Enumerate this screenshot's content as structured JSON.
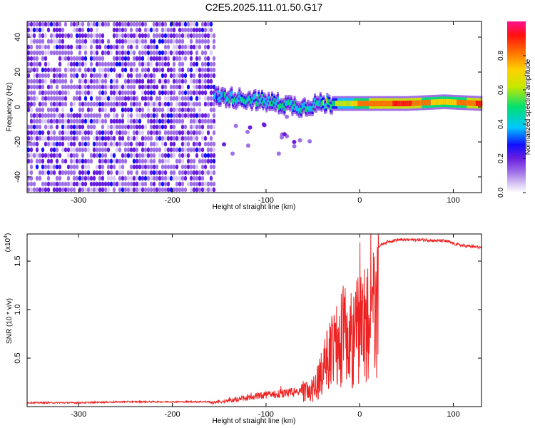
{
  "title": "C2E5.2025.111.01.50.G17",
  "chart_data": [
    {
      "type": "heatmap",
      "xlabel": "Height of straight line (km)",
      "ylabel": "Frequency (Hz)",
      "xlim": [
        -355,
        130
      ],
      "ylim": [
        -49,
        49
      ],
      "xticks": [
        -300,
        -200,
        -100,
        0,
        100
      ],
      "yticks": [
        -40,
        -20,
        0,
        20,
        40
      ],
      "noise_region": {
        "x_range": [
          -355,
          -155
        ],
        "y_range": [
          -49,
          49
        ],
        "note_amplitude": [
          0.1,
          0.3
        ]
      },
      "signal_track": [
        {
          "x": -155,
          "y": 6,
          "amp": 0.35
        },
        {
          "x": -140,
          "y": 5.5,
          "amp": 0.45
        },
        {
          "x": -120,
          "y": 4.5,
          "amp": 0.5
        },
        {
          "x": -100,
          "y": 3,
          "amp": 0.5
        },
        {
          "x": -80,
          "y": 1.5,
          "amp": 0.5
        },
        {
          "x": -60,
          "y": 0,
          "amp": 0.45
        },
        {
          "x": -45,
          "y": 2,
          "amp": 0.5
        },
        {
          "x": -30,
          "y": 2,
          "amp": 0.6
        },
        {
          "x": -10,
          "y": 2,
          "amp": 0.7
        },
        {
          "x": 0,
          "y": 2,
          "amp": 0.85
        },
        {
          "x": 50,
          "y": 2,
          "amp": 0.95
        },
        {
          "x": 90,
          "y": 3,
          "amp": 0.75
        },
        {
          "x": 130,
          "y": 2,
          "amp": 0.95
        }
      ],
      "colorbar": {
        "label": "Normalized spectral amplitude",
        "range": [
          0,
          1
        ],
        "ticks": [
          "0.0",
          "0.2",
          "0.4",
          "0.6",
          "0.8"
        ]
      },
      "colors": [
        "#ffffff",
        "#d8c8f4",
        "#a070e8",
        "#6a1ee0",
        "#1010ff",
        "#00c8ff",
        "#00e070",
        "#c8e800",
        "#ffd000",
        "#ff7000",
        "#ff1010",
        "#ff1090"
      ]
    },
    {
      "type": "line",
      "xlabel": "Height of straight line (km)",
      "ylabel": "SNR (10 * v/v)",
      "exponent_label": "(x10",
      "exponent_power": "4",
      "exponent_close": ")",
      "xlim": [
        -355,
        130
      ],
      "ylim": [
        0,
        1.78
      ],
      "xticks": [
        -300,
        -200,
        -100,
        0,
        100
      ],
      "yticks": [
        0.5,
        1.0,
        1.5
      ],
      "ytick_labels": [
        "0.5",
        "1.0",
        "1.5"
      ],
      "series": [
        {
          "color": "#ee2222",
          "x": [
            -355,
            -300,
            -250,
            -200,
            -160,
            -140,
            -120,
            -100,
            -80,
            -70,
            -60,
            -50,
            -45,
            -40,
            -35,
            -30,
            -25,
            -20,
            -15,
            -10,
            -5,
            0,
            5,
            10,
            15,
            20,
            25,
            30,
            40,
            50,
            60,
            70,
            80,
            90,
            95,
            100,
            110,
            120,
            130
          ],
          "y": [
            0.04,
            0.04,
            0.05,
            0.05,
            0.05,
            0.08,
            0.12,
            0.16,
            0.18,
            0.2,
            0.24,
            0.3,
            0.42,
            0.6,
            0.8,
            1.0,
            1.1,
            1.2,
            1.25,
            1.2,
            1.3,
            1.45,
            1.5,
            1.55,
            1.6,
            1.65,
            1.68,
            1.7,
            1.72,
            1.72,
            1.72,
            1.72,
            1.71,
            1.71,
            1.7,
            1.68,
            1.66,
            1.65,
            1.64
          ]
        }
      ]
    }
  ]
}
